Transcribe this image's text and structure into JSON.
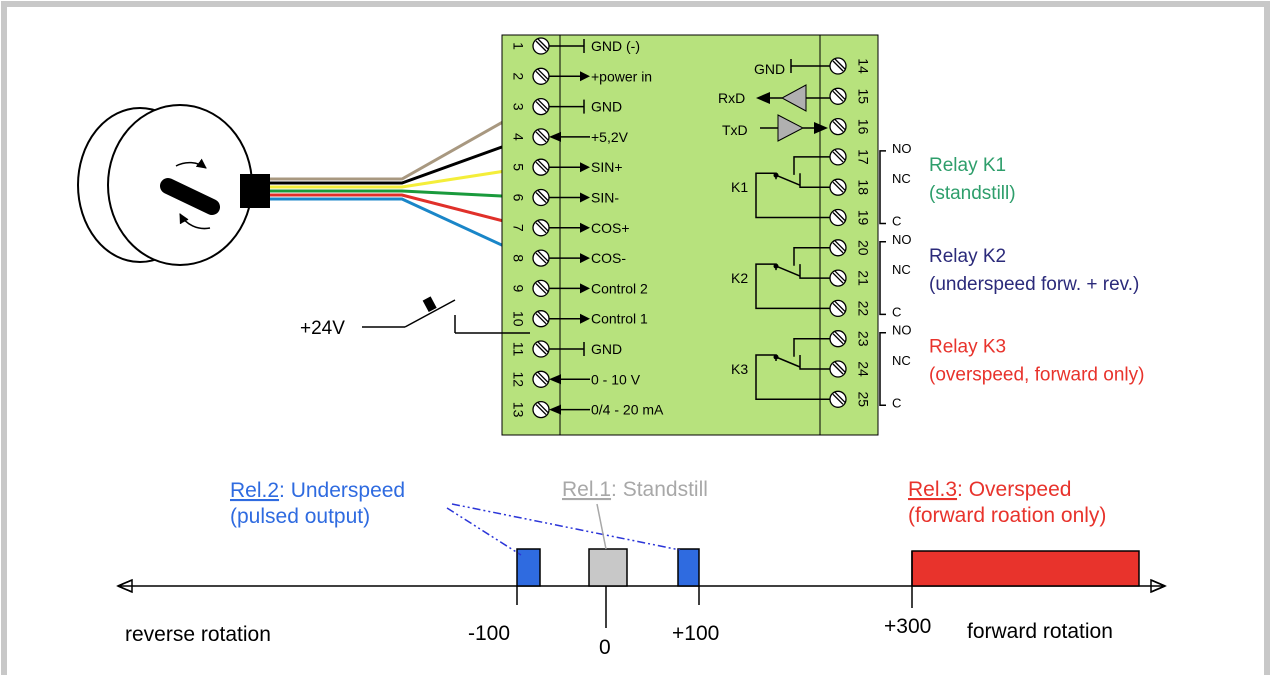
{
  "terminals_left": [
    {
      "num": "1",
      "label": "GND (-)",
      "type": "gnd-out"
    },
    {
      "num": "2",
      "label": "+power in",
      "type": "in"
    },
    {
      "num": "3",
      "label": "GND",
      "type": "gnd-out"
    },
    {
      "num": "4",
      "label": "+5,2V",
      "type": "out"
    },
    {
      "num": "5",
      "label": "SIN+",
      "type": "in"
    },
    {
      "num": "6",
      "label": "SIN-",
      "type": "in"
    },
    {
      "num": "7",
      "label": "COS+",
      "type": "in"
    },
    {
      "num": "8",
      "label": "COS-",
      "type": "in"
    },
    {
      "num": "9",
      "label": "Control 2",
      "type": "in"
    },
    {
      "num": "10",
      "label": "Control 1",
      "type": "in"
    },
    {
      "num": "11",
      "label": "GND",
      "type": "gnd-out"
    },
    {
      "num": "12",
      "label": "0 - 10 V",
      "type": "out"
    },
    {
      "num": "13",
      "label": "0/4 - 20 mA",
      "type": "out"
    }
  ],
  "terminals_right": [
    "14",
    "15",
    "16",
    "17",
    "18",
    "19",
    "20",
    "21",
    "22",
    "23",
    "24",
    "25"
  ],
  "serial": {
    "gnd": "GND",
    "rxd": "RxD",
    "txd": "TxD"
  },
  "relays": [
    {
      "coil": "K1",
      "name": "Relay K1",
      "desc": "(standstill)",
      "color": "#2e9e6b",
      "no": "NO",
      "nc": "NC",
      "c": "C"
    },
    {
      "coil": "K2",
      "name": "Relay K2",
      "desc": "(underspeed forw. + rev.)",
      "color": "#2b2a7a",
      "no": "NO",
      "nc": "NC",
      "c": "C"
    },
    {
      "coil": "K3",
      "name": "Relay K3",
      "desc": "(overspeed, forward only)",
      "color": "#e8332c",
      "no": "NO",
      "nc": "NC",
      "c": "C"
    }
  ],
  "switch_supply": "+24V",
  "wire_colors": {
    "brown": "#a89880",
    "black": "#000000",
    "yellow": "#f4ee3a",
    "green": "#1a9a3c",
    "red": "#e0302a",
    "blue": "#1a86c8"
  },
  "bottom": {
    "rel2_link": "Rel.2",
    "rel2_title": ": Underspeed",
    "rel2_sub": "(pulsed output)",
    "rel1_link": "Rel.1",
    "rel1_title": ": Standstill",
    "rel3_link": "Rel.3",
    "rel3_title": ": Overspeed",
    "rel3_sub": "(forward roation only)",
    "axis_left": "reverse rotation",
    "axis_right": "forward rotation",
    "tick_m100": "-100",
    "tick_0": "0",
    "tick_p100": "+100",
    "tick_p300": "+300",
    "color_rel2": "#2f6be0",
    "color_rel1": "#a8a8a8",
    "color_rel3": "#e8332c"
  },
  "colors": {
    "terminal_block": "#b7e27d",
    "frame": "#c8c8c8"
  }
}
